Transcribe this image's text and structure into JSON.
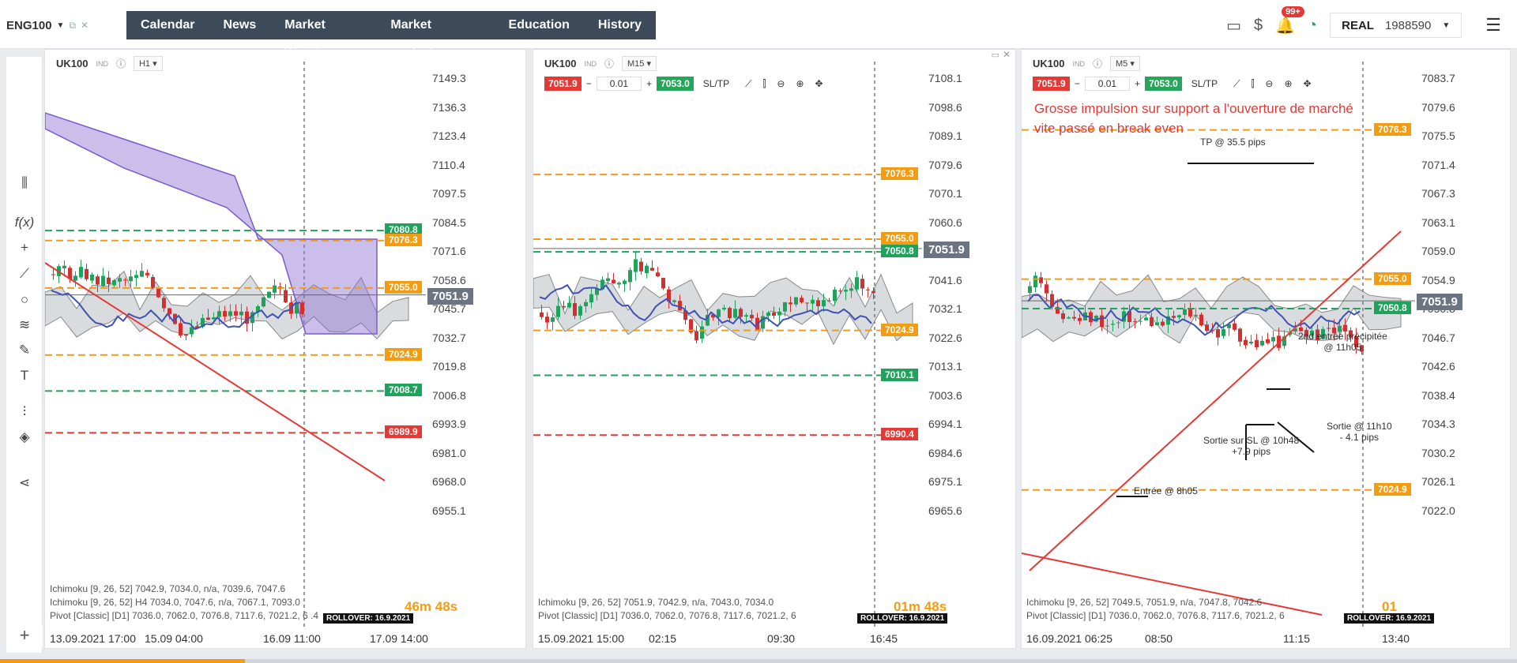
{
  "topbar": {
    "symbol": "ENG100",
    "nav": [
      "Calendar",
      "News",
      "Market Watch",
      "Market analysis",
      "Education",
      "History"
    ],
    "notifications": "99+",
    "account_mode": "REAL",
    "account_number": "1988590"
  },
  "panels": [
    {
      "symbol": "UK100",
      "market": "IND",
      "timeframe": "H1",
      "y_labels": [
        "7149.3",
        "7136.3",
        "7123.4",
        "7110.4",
        "7097.5",
        "7084.5",
        "7071.6",
        "7058.6",
        "7045.7",
        "7032.7",
        "7019.8",
        "7006.8",
        "6993.9",
        "6981.0",
        "6968.0",
        "6955.1"
      ],
      "x_labels": [
        "13.09.2021 17:00",
        "15.09 04:00",
        "16.09 11:00",
        "17.09 14:00"
      ],
      "price_tags": [
        {
          "value": "7080.8",
          "color": "green"
        },
        {
          "value": "7076.3",
          "color": "orange"
        },
        {
          "value": "7055.0",
          "color": "orange"
        },
        {
          "value": "7051.9",
          "color": "grey"
        },
        {
          "value": "7024.9",
          "color": "orange"
        },
        {
          "value": "7008.7",
          "color": "green"
        },
        {
          "value": "6989.9",
          "color": "red"
        }
      ],
      "indicators": [
        "Ichimoku [9, 26, 52] 7042.9, 7034.0, n/a, 7039.6, 7047.6",
        "Ichimoku [9, 26, 52] H4 7034.0, 7047.6, n/a, 7067.1, 7093.0",
        "Pivot [Classic] [D1] 7036.0, 7062.0, 7076.8, 7117.6, 7021.2, 6 .4"
      ],
      "timer": "46m 48s",
      "rollover": "ROLLOVER: 16.9.2021"
    },
    {
      "symbol": "UK100",
      "market": "IND",
      "timeframe": "M15",
      "sell": "7051.9",
      "buy": "7053.0",
      "lot": "0.01",
      "sltp": "SL/TP",
      "y_labels": [
        "7108.1",
        "7098.6",
        "7089.1",
        "7079.6",
        "7070.1",
        "7060.6",
        "7051.1",
        "7041.6",
        "7032.1",
        "7022.6",
        "7013.1",
        "7003.6",
        "6994.1",
        "6984.6",
        "6975.1",
        "6965.6"
      ],
      "x_labels": [
        "15.09.2021 15:00",
        "02:15",
        "09:30",
        "16:45"
      ],
      "price_tags": [
        {
          "value": "7076.3",
          "color": "orange"
        },
        {
          "value": "7055.0",
          "color": "orange"
        },
        {
          "value": "7050.8",
          "color": "green"
        },
        {
          "value": "7051.9",
          "color": "grey"
        },
        {
          "value": "7024.9",
          "color": "orange"
        },
        {
          "value": "7010.1",
          "color": "green"
        },
        {
          "value": "6990.4",
          "color": "red"
        }
      ],
      "indicators": [
        "Ichimoku [9, 26, 52] 7051.9, 7042.9, n/a, 7043.0, 7034.0",
        "Pivot [Classic] [D1] 7036.0, 7062.0, 7076.8, 7117.6, 7021.2, 6"
      ],
      "timer": "01m 48s",
      "rollover": "ROLLOVER: 16.9.2021"
    },
    {
      "symbol": "UK100",
      "market": "IND",
      "timeframe": "M5",
      "sell": "7051.9",
      "buy": "7053.0",
      "lot": "0.01",
      "sltp": "SL/TP",
      "y_labels": [
        "7083.7",
        "7079.6",
        "7075.5",
        "7071.4",
        "7067.3",
        "7063.1",
        "7059.0",
        "7054.9",
        "7050.8",
        "7046.7",
        "7042.6",
        "7038.4",
        "7034.3",
        "7030.2",
        "7026.1",
        "7022.0"
      ],
      "x_labels": [
        "16.09.2021 06:25",
        "08:50",
        "11:15",
        "13:40"
      ],
      "price_tags": [
        {
          "value": "7076.3",
          "color": "orange"
        },
        {
          "value": "7055.0",
          "color": "orange"
        },
        {
          "value": "7051.9",
          "color": "grey"
        },
        {
          "value": "7050.8",
          "color": "green"
        },
        {
          "value": "7024.9",
          "color": "orange"
        }
      ],
      "indicators": [
        "Ichimoku [9, 26, 52] 7049.5, 7051.9, n/a, 7047.8, 7042.6",
        "Pivot [Classic] [D1] 7036.0, 7062.0, 7076.8, 7117.6, 7021.2, 6"
      ],
      "timer": "01",
      "rollover": "ROLLOVER: 16.9.2021",
      "note_line1": "Grosse impulsion sur support a l'ouverture de marché",
      "note_line2": "vite passé en break even",
      "annotations": {
        "tp": "TP @ 35.5 pips",
        "entry2_l1": "2nd entrée précipitée",
        "entry2_l2": "@ 11h05",
        "exit2_l1": "Sortie @ 11h10",
        "exit2_l2": "- 4.1 pips",
        "exit1_l1": "Sortie sur SL @ 10h48",
        "exit1_l2": "+7.9 pips",
        "entry1": "Entrée @ 8h05"
      }
    }
  ]
}
